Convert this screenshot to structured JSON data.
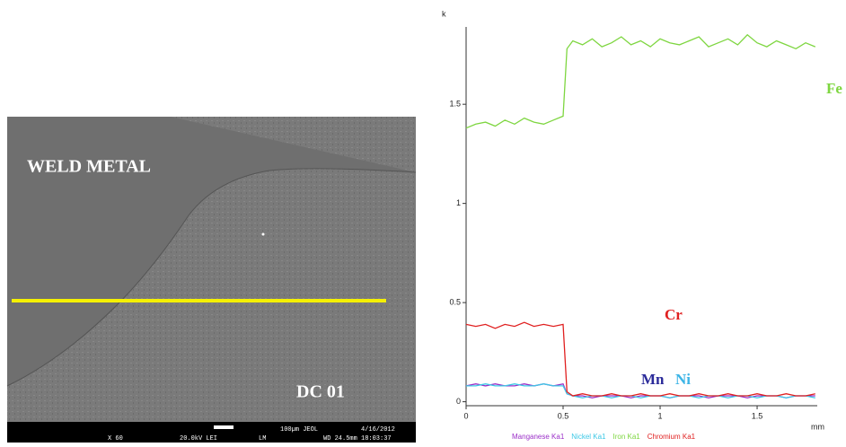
{
  "sem_image": {
    "region_label": "WELD METAL",
    "sample_label": "DC 01",
    "info_bar": [
      "X 60",
      "20.0kV LEI",
      "LM",
      "100µm JEOL",
      "4/16/2012",
      "WD 24.5mm 18:03:37"
    ]
  },
  "chart_data": {
    "type": "line",
    "y_label": "k",
    "x_label": "mm",
    "x": [
      0,
      0.05,
      0.1,
      0.15,
      0.2,
      0.25,
      0.3,
      0.35,
      0.4,
      0.45,
      0.5,
      0.52,
      0.55,
      0.6,
      0.65,
      0.7,
      0.75,
      0.8,
      0.85,
      0.9,
      0.95,
      1,
      1.05,
      1.1,
      1.15,
      1.2,
      1.25,
      1.3,
      1.35,
      1.4,
      1.45,
      1.5,
      1.55,
      1.6,
      1.65,
      1.7,
      1.75,
      1.8
    ],
    "series": [
      {
        "name": "Manganese Ka1",
        "color": "#9b30c8",
        "label": "Mn",
        "label_color": "#2b2b9a",
        "values": [
          0.08,
          0.09,
          0.08,
          0.09,
          0.08,
          0.08,
          0.09,
          0.08,
          0.09,
          0.08,
          0.09,
          0.04,
          0.03,
          0.03,
          0.02,
          0.03,
          0.03,
          0.03,
          0.02,
          0.03,
          0.03,
          0.03,
          0.02,
          0.03,
          0.03,
          0.03,
          0.02,
          0.03,
          0.03,
          0.03,
          0.02,
          0.03,
          0.03,
          0.03,
          0.02,
          0.03,
          0.03,
          0.03
        ]
      },
      {
        "name": "Nickel Ka1",
        "color": "#3cc8e6",
        "label": "Ni",
        "label_color": "#3cb4e6",
        "values": [
          0.08,
          0.08,
          0.09,
          0.08,
          0.08,
          0.09,
          0.08,
          0.08,
          0.09,
          0.08,
          0.08,
          0.04,
          0.03,
          0.02,
          0.03,
          0.03,
          0.02,
          0.03,
          0.03,
          0.02,
          0.03,
          0.03,
          0.02,
          0.03,
          0.03,
          0.02,
          0.03,
          0.03,
          0.02,
          0.03,
          0.03,
          0.02,
          0.03,
          0.03,
          0.02,
          0.03,
          0.03,
          0.02
        ]
      },
      {
        "name": "Iron Ka1",
        "color": "#7ed640",
        "label": "Fe",
        "label_color": "#7ed640",
        "values": [
          1.38,
          1.4,
          1.41,
          1.39,
          1.42,
          1.4,
          1.43,
          1.41,
          1.4,
          1.42,
          1.44,
          1.78,
          1.82,
          1.8,
          1.83,
          1.79,
          1.81,
          1.84,
          1.8,
          1.82,
          1.79,
          1.83,
          1.81,
          1.8,
          1.82,
          1.84,
          1.79,
          1.81,
          1.83,
          1.8,
          1.85,
          1.81,
          1.79,
          1.82,
          1.8,
          1.78,
          1.81,
          1.79
        ]
      },
      {
        "name": "Chromium Ka1",
        "color": "#e02020",
        "label": "Cr",
        "label_color": "#e02020",
        "values": [
          0.39,
          0.38,
          0.39,
          0.37,
          0.39,
          0.38,
          0.4,
          0.38,
          0.39,
          0.38,
          0.39,
          0.05,
          0.03,
          0.04,
          0.03,
          0.03,
          0.04,
          0.03,
          0.03,
          0.04,
          0.03,
          0.03,
          0.04,
          0.03,
          0.03,
          0.04,
          0.03,
          0.03,
          0.04,
          0.03,
          0.03,
          0.04,
          0.03,
          0.03,
          0.04,
          0.03,
          0.03,
          0.04
        ]
      }
    ],
    "xlim": [
      0,
      1.81
    ],
    "ylim": [
      -0.02,
      1.89
    ],
    "xticks": [
      0,
      0.5,
      1,
      1.5
    ],
    "yticks": [
      0,
      0.5,
      1,
      1.5
    ]
  }
}
